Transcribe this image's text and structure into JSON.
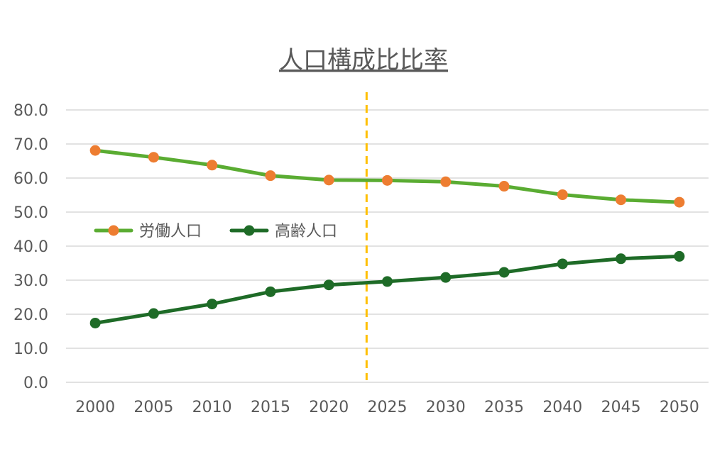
{
  "chart_data": {
    "type": "line",
    "title": "人口構成比比率",
    "xlabel": "",
    "ylabel": "",
    "categories": [
      "2000",
      "2005",
      "2010",
      "2015",
      "2020",
      "2025",
      "2030",
      "2035",
      "2040",
      "2045",
      "2050"
    ],
    "yticks": [
      "0.0",
      "10.0",
      "20.0",
      "30.0",
      "40.0",
      "50.0",
      "60.0",
      "70.0",
      "80.0"
    ],
    "ylim": [
      0,
      80
    ],
    "grid": true,
    "legend_position": "left-middle",
    "reference_line": {
      "between": [
        "2020",
        "2025"
      ],
      "style": "dashed",
      "color": "#ffc000"
    },
    "series": [
      {
        "name": "労働人口",
        "values": [
          68.1,
          66.1,
          63.8,
          60.7,
          59.4,
          59.3,
          58.9,
          57.6,
          55.1,
          53.6,
          52.9
        ],
        "line_color": "#5aac32",
        "marker_color": "#ed7d31"
      },
      {
        "name": "高齢人口",
        "values": [
          17.4,
          20.2,
          23.0,
          26.6,
          28.6,
          29.6,
          30.8,
          32.3,
          34.8,
          36.3,
          37.0
        ],
        "line_color": "#1e6b27",
        "marker_color": "#1e6b27"
      }
    ]
  }
}
